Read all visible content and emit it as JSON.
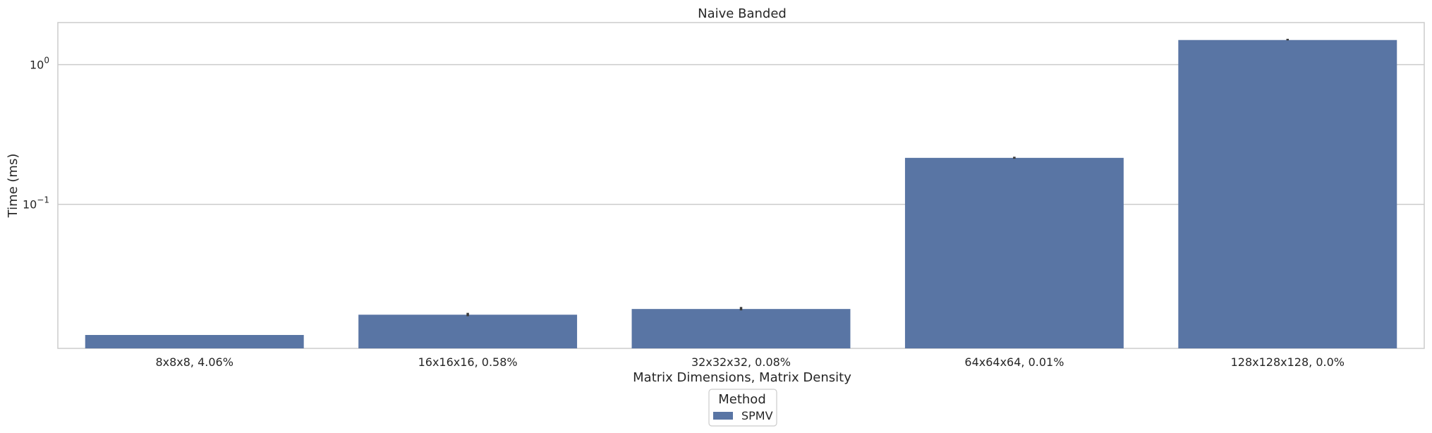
{
  "chart_data": {
    "type": "bar",
    "title": "Naive Banded",
    "xlabel": "Matrix Dimensions, Matrix Density",
    "ylabel": "Time (ms)",
    "yscale": "log",
    "ylim": [
      0.0093,
      2.0
    ],
    "grid": true,
    "legend": {
      "title": "Method",
      "placement": "bottom-center",
      "entries": [
        "SPMV"
      ]
    },
    "ytick_labels": [
      {
        "value": 1.0,
        "base": "10",
        "exp": "0"
      },
      {
        "value": 0.1,
        "base": "10",
        "exp": "−1"
      }
    ],
    "categories": [
      "8x8x8, 4.06%",
      "16x16x16, 0.58%",
      "32x32x32, 0.08%",
      "64x64x64, 0.01%",
      "128x128x128, 0.0%"
    ],
    "series": [
      {
        "name": "SPMV",
        "color": "#5975a4",
        "values": [
          0.0116,
          0.0162,
          0.0178,
          0.215,
          1.5
        ],
        "error_low": [
          0.0116,
          0.0158,
          0.0174,
          0.212,
          1.49
        ],
        "error_high": [
          0.0116,
          0.0167,
          0.0184,
          0.219,
          1.53
        ]
      }
    ]
  }
}
